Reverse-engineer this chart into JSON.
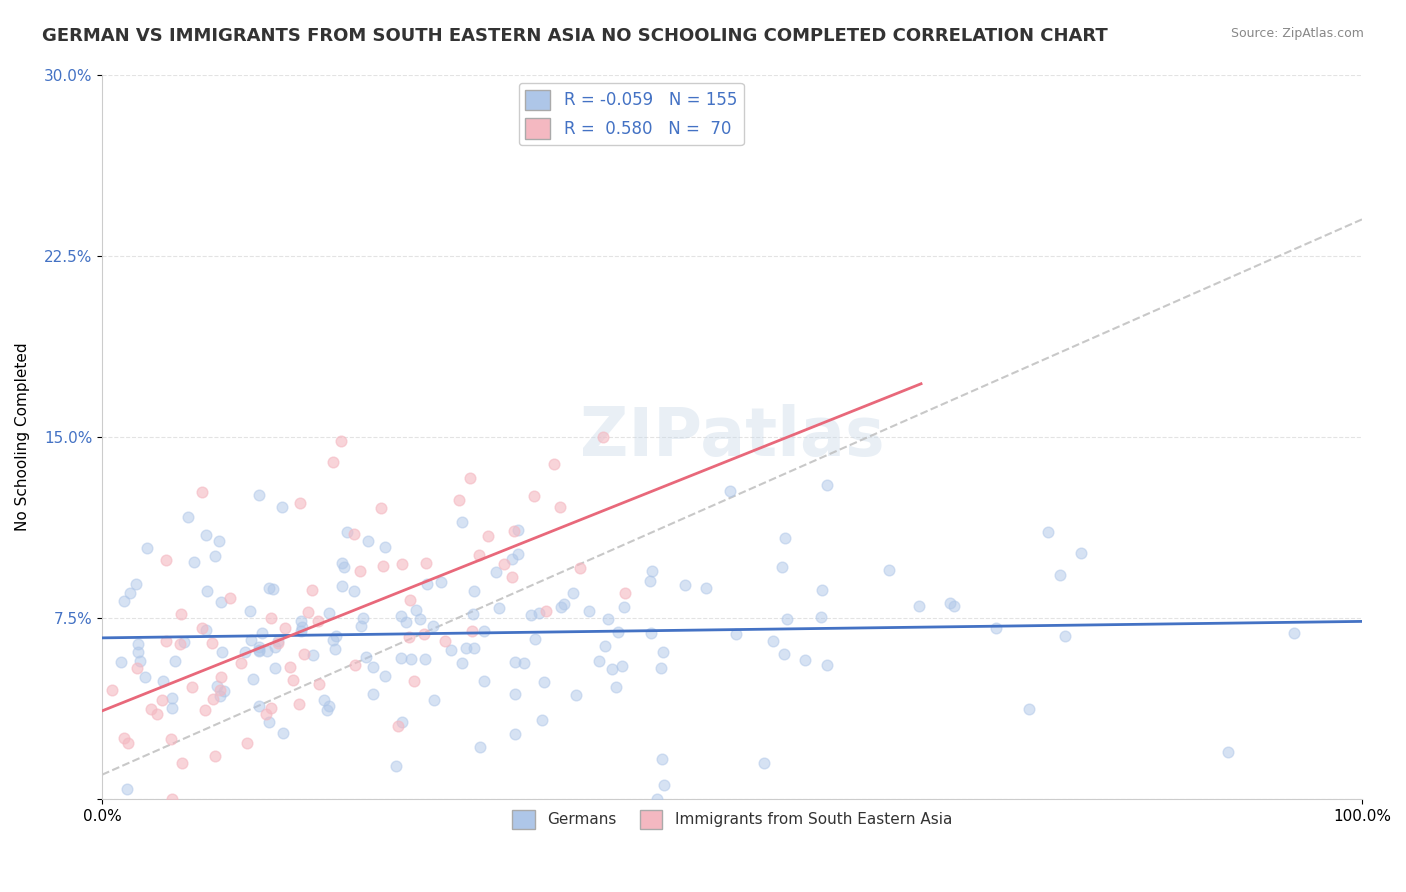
{
  "title": "GERMAN VS IMMIGRANTS FROM SOUTH EASTERN ASIA NO SCHOOLING COMPLETED CORRELATION CHART",
  "source": "Source: ZipAtlas.com",
  "ylabel": "No Schooling Completed",
  "xlabel": "",
  "xlim": [
    0.0,
    1.0
  ],
  "ylim": [
    0.0,
    0.3
  ],
  "yticks": [
    0.0,
    0.075,
    0.15,
    0.225,
    0.3
  ],
  "ytick_labels": [
    "",
    "7.5%",
    "15.0%",
    "22.5%",
    "30.0%"
  ],
  "xticks": [
    0.0,
    1.0
  ],
  "xtick_labels": [
    "0.0%",
    "100.0%"
  ],
  "legend_entries": [
    {
      "label": "R = -0.059   N = 155",
      "color": "#aec6e8"
    },
    {
      "label": "R =  0.580   N =  70",
      "color": "#f4b8c1"
    }
  ],
  "bottom_legend": [
    {
      "label": "Germans",
      "color": "#aec6e8"
    },
    {
      "label": "Immigrants from South Eastern Asia",
      "color": "#f4b8c1"
    }
  ],
  "blue_R": -0.059,
  "blue_N": 155,
  "pink_R": 0.58,
  "pink_N": 70,
  "blue_color": "#7bafd4",
  "blue_scatter_color": "#aec6e8",
  "pink_color": "#f4b8c1",
  "pink_scatter_color": "#f4b8c1",
  "blue_line_color": "#4472c4",
  "pink_line_color": "#e8687a",
  "background_color": "#ffffff",
  "grid_color": "#dddddd",
  "title_fontsize": 13,
  "axis_label_fontsize": 11,
  "tick_fontsize": 11,
  "watermark_text": "ZIPatlas",
  "watermark_color": "#c8d8e8"
}
